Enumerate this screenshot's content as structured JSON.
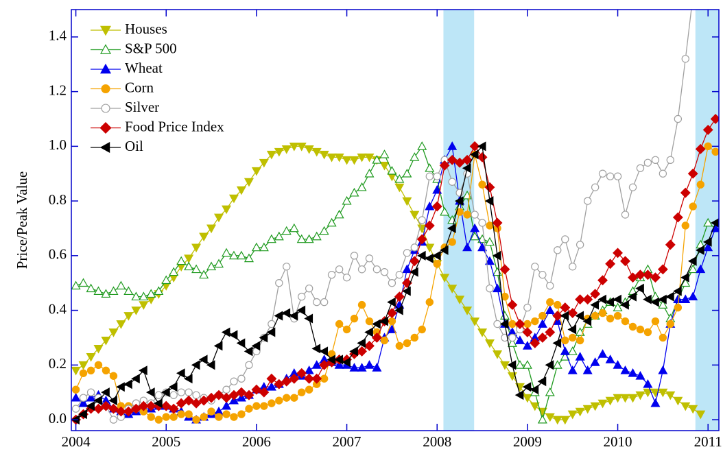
{
  "chart_data": {
    "type": "line",
    "ylabel": "Price/Peak Value",
    "xlim": [
      2003.95,
      2011.12
    ],
    "ylim": [
      -0.04,
      1.5
    ],
    "xticks": [
      2004,
      2005,
      2006,
      2007,
      2008,
      2009,
      2010,
      2011
    ],
    "yticks": [
      {
        "value": 0,
        "label": "0.0"
      },
      0.2,
      0.4,
      0.6,
      0.8,
      {
        "value": 1,
        "label": "1.0"
      },
      1.2,
      1.4
    ],
    "shaded_regions": [
      [
        2008.07,
        2008.41
      ],
      [
        2010.86,
        2011.12
      ]
    ],
    "shade_color": "#bde6f7",
    "legend": "upper left",
    "x": [
      2004,
      2004.083,
      2004.167,
      2004.25,
      2004.333,
      2004.417,
      2004.5,
      2004.583,
      2004.667,
      2004.75,
      2004.833,
      2004.917,
      2005,
      2005.083,
      2005.167,
      2005.25,
      2005.333,
      2005.417,
      2005.5,
      2005.583,
      2005.667,
      2005.75,
      2005.833,
      2005.917,
      2006,
      2006.083,
      2006.167,
      2006.25,
      2006.333,
      2006.417,
      2006.5,
      2006.583,
      2006.667,
      2006.75,
      2006.833,
      2006.917,
      2007,
      2007.083,
      2007.167,
      2007.25,
      2007.333,
      2007.417,
      2007.5,
      2007.583,
      2007.667,
      2007.75,
      2007.833,
      2007.917,
      2008,
      2008.083,
      2008.167,
      2008.25,
      2008.333,
      2008.417,
      2008.5,
      2008.583,
      2008.667,
      2008.75,
      2008.833,
      2008.917,
      2009,
      2009.083,
      2009.167,
      2009.25,
      2009.333,
      2009.417,
      2009.5,
      2009.583,
      2009.667,
      2009.75,
      2009.833,
      2009.917,
      2010,
      2010.083,
      2010.167,
      2010.25,
      2010.333,
      2010.417,
      2010.5,
      2010.583,
      2010.667,
      2010.75,
      2010.833,
      2010.917,
      2011,
      2011.083
    ],
    "series": [
      {
        "name": "Houses",
        "color": "#bfbf00",
        "marker": "triangle-down",
        "filled": true,
        "values": [
          0.18,
          0.2,
          0.23,
          0.26,
          0.29,
          0.32,
          0.35,
          0.38,
          0.4,
          0.42,
          0.44,
          0.46,
          0.49,
          0.52,
          0.56,
          0.59,
          0.63,
          0.67,
          0.7,
          0.74,
          0.77,
          0.81,
          0.84,
          0.87,
          0.91,
          0.94,
          0.97,
          0.98,
          0.99,
          1.0,
          1.0,
          0.99,
          0.98,
          0.97,
          0.96,
          0.96,
          0.95,
          0.95,
          0.96,
          0.96,
          0.95,
          0.93,
          0.89,
          0.85,
          0.8,
          0.75,
          0.7,
          0.63,
          0.57,
          0.52,
          0.48,
          0.44,
          0.4,
          0.36,
          0.32,
          0.28,
          0.24,
          0.2,
          0.16,
          0.12,
          0.08,
          0.05,
          0.03,
          0.01,
          0.0,
          0.0,
          0.02,
          0.03,
          0.04,
          0.05,
          0.06,
          0.07,
          0.08,
          0.08,
          0.08,
          0.09,
          0.1,
          0.1,
          0.1,
          0.09,
          0.07,
          0.05,
          0.04,
          0.02,
          null,
          null
        ]
      },
      {
        "name": "S&P 500",
        "color": "#1f9a1f",
        "marker": "triangle-up",
        "filled": false,
        "values": [
          0.49,
          0.5,
          0.48,
          0.47,
          0.46,
          0.47,
          0.49,
          0.47,
          0.45,
          0.45,
          0.46,
          0.47,
          0.51,
          0.54,
          0.58,
          0.56,
          0.55,
          0.53,
          0.56,
          0.57,
          0.61,
          0.6,
          0.6,
          0.59,
          0.63,
          0.63,
          0.66,
          0.67,
          0.69,
          0.7,
          0.66,
          0.66,
          0.67,
          0.69,
          0.72,
          0.75,
          0.8,
          0.83,
          0.85,
          0.9,
          0.95,
          0.97,
          0.91,
          0.88,
          0.9,
          0.96,
          1.0,
          0.92,
          0.88,
          0.76,
          0.73,
          0.78,
          0.82,
          0.67,
          0.66,
          0.65,
          0.54,
          0.38,
          0.28,
          0.2,
          0.2,
          0.1,
          0.0,
          0.1,
          0.2,
          0.23,
          0.25,
          0.32,
          0.35,
          0.38,
          0.4,
          0.43,
          0.41,
          0.43,
          0.47,
          0.52,
          0.55,
          0.45,
          0.42,
          0.37,
          0.44,
          0.5,
          0.55,
          0.64,
          0.72,
          0.7
        ]
      },
      {
        "name": "Wheat",
        "color": "#0000ee",
        "marker": "triangle-up",
        "filled": true,
        "values": [
          0.08,
          0.06,
          0.08,
          0.09,
          0.07,
          0.04,
          0.03,
          0.02,
          0.03,
          0.04,
          0.04,
          0.05,
          0.05,
          0.04,
          0.03,
          0.01,
          0.0,
          0.01,
          0.02,
          0.03,
          0.05,
          0.07,
          0.08,
          0.09,
          0.11,
          0.12,
          0.12,
          0.13,
          0.15,
          0.17,
          0.16,
          0.18,
          0.2,
          0.22,
          0.21,
          0.2,
          0.2,
          0.19,
          0.19,
          0.2,
          0.19,
          0.3,
          0.33,
          0.42,
          0.55,
          0.62,
          0.65,
          0.78,
          0.84,
          0.95,
          1.0,
          0.8,
          0.63,
          0.7,
          0.63,
          0.58,
          0.48,
          0.35,
          0.32,
          0.29,
          0.27,
          0.3,
          0.35,
          0.4,
          0.36,
          0.25,
          0.18,
          0.23,
          0.18,
          0.21,
          0.24,
          0.22,
          0.2,
          0.18,
          0.17,
          0.16,
          0.13,
          0.06,
          0.18,
          0.35,
          0.44,
          0.44,
          0.45,
          0.55,
          0.63,
          0.7
        ]
      },
      {
        "name": "Corn",
        "color": "#f5a300",
        "marker": "circle",
        "filled": true,
        "values": [
          0.11,
          0.17,
          0.18,
          0.2,
          0.18,
          0.16,
          0.05,
          0.05,
          0.04,
          0.03,
          0.01,
          0.0,
          0.01,
          0.01,
          0.02,
          0.02,
          0.0,
          0.01,
          0.03,
          0.01,
          0.02,
          0.01,
          0.02,
          0.04,
          0.05,
          0.05,
          0.06,
          0.07,
          0.08,
          0.08,
          0.1,
          0.11,
          0.13,
          0.15,
          0.24,
          0.35,
          0.33,
          0.37,
          0.42,
          0.36,
          0.32,
          0.29,
          0.36,
          0.27,
          0.28,
          0.3,
          0.33,
          0.43,
          0.57,
          0.63,
          0.65,
          0.76,
          0.75,
          0.97,
          0.86,
          0.71,
          0.7,
          0.45,
          0.35,
          0.34,
          0.35,
          0.36,
          0.38,
          0.43,
          0.42,
          0.29,
          0.3,
          0.29,
          0.37,
          0.38,
          0.39,
          0.37,
          0.38,
          0.36,
          0.34,
          0.33,
          0.32,
          0.36,
          0.3,
          0.35,
          0.41,
          0.71,
          0.78,
          0.86,
          1.0,
          0.98
        ]
      },
      {
        "name": "Silver",
        "color": "#a0a0a0",
        "marker": "circle",
        "filled": false,
        "values": [
          0.04,
          0.08,
          0.1,
          0.08,
          0.05,
          0.0,
          0.01,
          0.04,
          0.06,
          0.07,
          0.06,
          0.09,
          0.1,
          0.09,
          0.1,
          0.1,
          0.09,
          0.08,
          0.07,
          0.09,
          0.11,
          0.14,
          0.15,
          0.2,
          0.25,
          0.3,
          0.35,
          0.5,
          0.56,
          0.37,
          0.45,
          0.48,
          0.43,
          0.43,
          0.53,
          0.55,
          0.52,
          0.6,
          0.55,
          0.59,
          0.55,
          0.54,
          0.5,
          0.53,
          0.61,
          0.63,
          0.73,
          0.89,
          0.89,
          0.95,
          0.87,
          0.83,
          0.9,
          0.75,
          0.72,
          0.48,
          0.35,
          0.3,
          0.3,
          0.33,
          0.41,
          0.56,
          0.53,
          0.49,
          0.62,
          0.66,
          0.56,
          0.64,
          0.8,
          0.85,
          0.9,
          0.89,
          0.89,
          0.75,
          0.85,
          0.92,
          0.94,
          0.95,
          0.9,
          0.95,
          1.1,
          1.32,
          1.55,
          null,
          null,
          null
        ]
      },
      {
        "name": "Food Price Index",
        "color": "#cc0000",
        "marker": "diamond",
        "filled": true,
        "values": [
          0.0,
          0.02,
          0.04,
          0.04,
          0.05,
          0.04,
          0.03,
          0.03,
          0.04,
          0.05,
          0.05,
          0.05,
          0.05,
          0.04,
          0.06,
          0.07,
          0.06,
          0.07,
          0.08,
          0.09,
          0.08,
          0.09,
          0.1,
          0.09,
          0.11,
          0.1,
          0.15,
          0.13,
          0.14,
          0.15,
          0.17,
          0.15,
          0.15,
          0.2,
          0.21,
          0.22,
          0.22,
          0.24,
          0.25,
          0.27,
          0.3,
          0.36,
          0.39,
          0.45,
          0.5,
          0.58,
          0.66,
          0.71,
          0.78,
          0.93,
          0.95,
          0.94,
          0.95,
          1.0,
          0.96,
          0.85,
          0.72,
          0.55,
          0.42,
          0.35,
          0.32,
          0.28,
          0.3,
          0.32,
          0.38,
          0.41,
          0.39,
          0.44,
          0.44,
          0.46,
          0.51,
          0.57,
          0.61,
          0.58,
          0.52,
          0.53,
          0.53,
          0.52,
          0.55,
          0.64,
          0.74,
          0.83,
          0.9,
          0.99,
          1.06,
          1.1
        ]
      },
      {
        "name": "Oil",
        "color": "#000000",
        "marker": "triangle-left",
        "filled": true,
        "values": [
          0.0,
          0.02,
          0.05,
          0.07,
          0.1,
          0.07,
          0.12,
          0.13,
          0.15,
          0.18,
          0.1,
          0.06,
          0.1,
          0.12,
          0.17,
          0.15,
          0.2,
          0.22,
          0.2,
          0.27,
          0.32,
          0.31,
          0.28,
          0.25,
          0.27,
          0.3,
          0.32,
          0.38,
          0.39,
          0.38,
          0.4,
          0.37,
          0.26,
          0.25,
          0.22,
          0.22,
          0.21,
          0.25,
          0.28,
          0.32,
          0.35,
          0.36,
          0.43,
          0.4,
          0.47,
          0.54,
          0.6,
          0.59,
          0.6,
          0.62,
          0.7,
          0.8,
          0.92,
          0.97,
          1.0,
          0.8,
          0.6,
          0.35,
          0.2,
          0.09,
          0.12,
          0.11,
          0.14,
          0.2,
          0.28,
          0.38,
          0.33,
          0.38,
          0.36,
          0.42,
          0.44,
          0.43,
          0.44,
          0.42,
          0.45,
          0.48,
          0.44,
          0.43,
          0.44,
          0.45,
          0.47,
          0.52,
          0.58,
          0.62,
          0.65,
          0.72
        ]
      }
    ]
  }
}
